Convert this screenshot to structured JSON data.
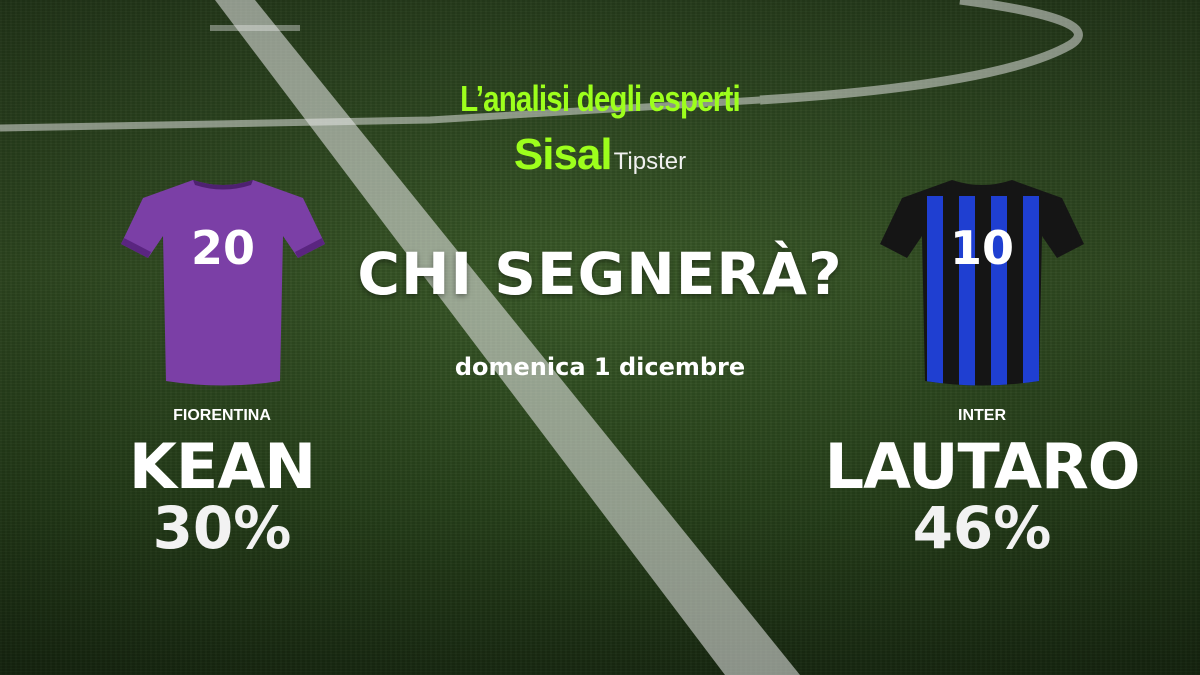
{
  "header": {
    "title": "L’analisi degli esperti",
    "brand": "Sisal",
    "brand_suffix": "Tipster"
  },
  "headline": "CHI SEGNERÀ?",
  "date": "domenica 1 dicembre",
  "colors": {
    "accent": "#9dff1c",
    "fiorentina": "#7b3fa6",
    "inter_blue": "#1f3fd1",
    "inter_black": "#151515"
  },
  "players": [
    {
      "team": "FIORENTINA",
      "name": "KEAN",
      "percent": "30%",
      "shirt_number": "20",
      "icon": "purple-jersey-icon"
    },
    {
      "team": "INTER",
      "name": "LAUTARO",
      "percent": "46%",
      "shirt_number": "10",
      "icon": "blue-black-striped-jersey-icon"
    }
  ]
}
